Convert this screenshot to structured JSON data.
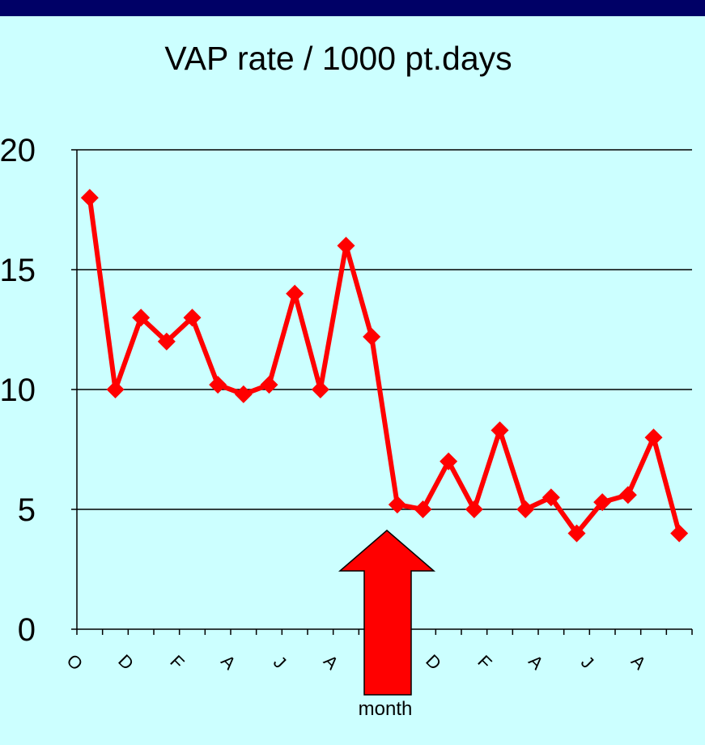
{
  "chart_data": {
    "type": "line",
    "title": "VAP rate / 1000 pt.days",
    "xlabel": "month",
    "categories": [
      "O",
      null,
      "D",
      null,
      "F",
      null,
      "A",
      null,
      "J",
      null,
      "A",
      null,
      null,
      null,
      "D",
      null,
      "F",
      null,
      "A",
      null,
      "J",
      null,
      "A",
      null
    ],
    "series": [
      {
        "name": "VAP rate",
        "color": "#ff0000",
        "values": [
          18,
          10,
          13,
          12,
          13,
          10.2,
          9.8,
          10.2,
          14,
          10,
          16,
          12.2,
          5.2,
          5,
          7,
          5,
          8.3,
          5,
          5.5,
          4,
          5.3,
          5.6,
          8,
          4
        ]
      }
    ],
    "ylim": [
      0,
      20
    ],
    "yticks": [
      0,
      5,
      10,
      15,
      20
    ],
    "grid": true
  }
}
